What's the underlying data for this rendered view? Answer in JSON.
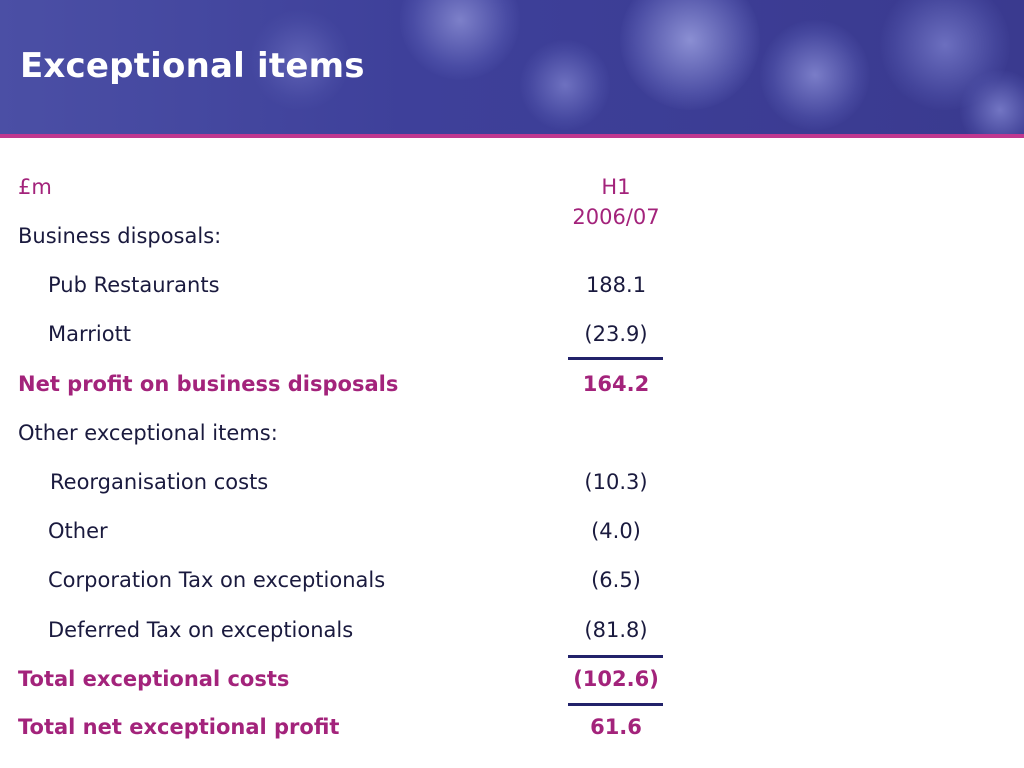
{
  "slide": {
    "title": "Exceptional items"
  },
  "colors": {
    "banner": "#3e409a",
    "accent": "#a3237b",
    "text": "#1a1a3e",
    "rule": "#22226a"
  },
  "table": {
    "header": {
      "label": "£m",
      "value": "H1 2006/07"
    },
    "rows": [
      {
        "label": "Business disposals:",
        "value": ""
      },
      {
        "label": "Pub Restaurants",
        "value": "188.1"
      },
      {
        "label": "Marriott",
        "value": "(23.9)"
      },
      {
        "label": "Net profit on business disposals",
        "value": "164.2"
      },
      {
        "label": "Other exceptional items:",
        "value": ""
      },
      {
        "label": "Reorganisation costs",
        "value": "(10.3)"
      },
      {
        "label": "Other",
        "value": "(4.0)"
      },
      {
        "label": "Corporation Tax on exceptionals",
        "value": "(6.5)"
      },
      {
        "label": "Deferred Tax on exceptionals",
        "value": "(81.8)"
      },
      {
        "label": "Total exceptional costs",
        "value": "(102.6)"
      },
      {
        "label": "Total net exceptional profit",
        "value": "61.6"
      }
    ]
  }
}
